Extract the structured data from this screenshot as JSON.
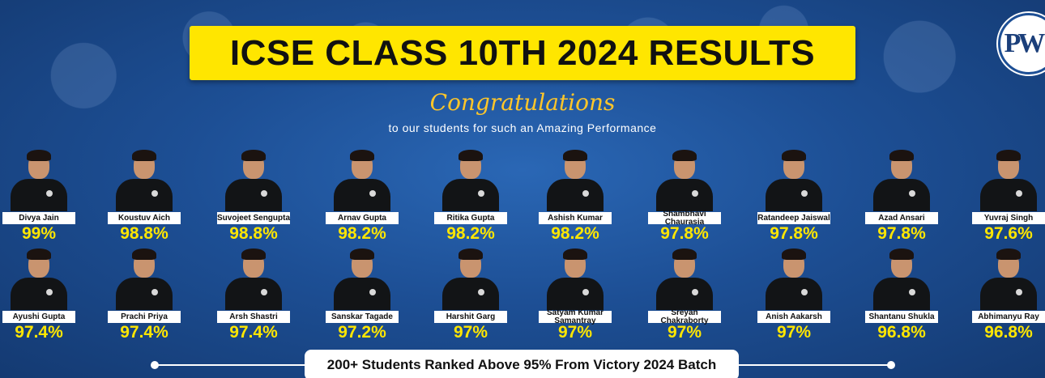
{
  "banner": {
    "title": "ICSE CLASS 10TH 2024 RESULTS",
    "logo_text": "PW",
    "congrats": "Congratulations",
    "subtitle": "to our students for such an Amazing Performance",
    "footer": "200+ Students Ranked Above 95% From Victory 2024 Batch",
    "colors": {
      "background": "#1d4f95",
      "title_box": "#ffe600",
      "percent": "#ffe600",
      "congrats": "#ffc629"
    }
  },
  "students": [
    {
      "name": "Divya Jain",
      "percent": "99%"
    },
    {
      "name": "Koustuv Aich",
      "percent": "98.8%"
    },
    {
      "name": "Suvojeet Sengupta",
      "percent": "98.8%"
    },
    {
      "name": "Arnav Gupta",
      "percent": "98.2%"
    },
    {
      "name": "Ritika Gupta",
      "percent": "98.2%"
    },
    {
      "name": "Ashish Kumar",
      "percent": "98.2%"
    },
    {
      "name": "Shambhavi Chaurasia",
      "percent": "97.8%"
    },
    {
      "name": "Ratandeep Jaiswal",
      "percent": "97.8%"
    },
    {
      "name": "Azad Ansari",
      "percent": "97.8%"
    },
    {
      "name": "Yuvraj Singh",
      "percent": "97.6%"
    },
    {
      "name": "Ayushi Gupta",
      "percent": "97.4%"
    },
    {
      "name": "Prachi Priya",
      "percent": "97.4%"
    },
    {
      "name": "Arsh Shastri",
      "percent": "97.4%"
    },
    {
      "name": "Sanskar Tagade",
      "percent": "97.2%"
    },
    {
      "name": "Harshit Garg",
      "percent": "97%"
    },
    {
      "name": "Satyam Kumar Samantray",
      "percent": "97%"
    },
    {
      "name": "Sreyan Chakraborty",
      "percent": "97%"
    },
    {
      "name": "Anish Aakarsh",
      "percent": "97%"
    },
    {
      "name": "Shantanu Shukla",
      "percent": "96.8%"
    },
    {
      "name": "Abhimanyu Ray",
      "percent": "96.8%"
    }
  ]
}
